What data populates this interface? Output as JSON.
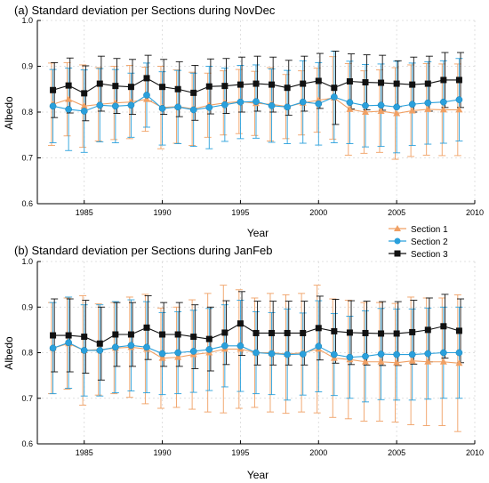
{
  "legend": [
    {
      "name": "Section 1",
      "color": "#f0a064",
      "marker": "triangle"
    },
    {
      "name": "Section 2",
      "color": "#2aa0dc",
      "marker": "circle"
    },
    {
      "name": "Section 3",
      "color": "#111111",
      "marker": "square"
    }
  ],
  "chart_data": [
    {
      "type": "line",
      "title": "(a) Standard deviation per Sections during NovDec",
      "xlabel": "Year",
      "ylabel": "Albedo",
      "xlim": [
        1982,
        2010
      ],
      "ylim": [
        0.6,
        1.0
      ],
      "xticks": [
        1985,
        1990,
        1995,
        2000,
        2005,
        2010
      ],
      "yticks": [
        0.6,
        0.7,
        0.8,
        0.9,
        1.0
      ],
      "grid": true,
      "x": [
        1983,
        1984,
        1985,
        1986,
        1987,
        1988,
        1989,
        1990,
        1991,
        1992,
        1993,
        1994,
        1995,
        1996,
        1997,
        1998,
        1999,
        2000,
        2001,
        2002,
        2003,
        2004,
        2005,
        2006,
        2007,
        2008,
        2009
      ],
      "series": [
        {
          "name": "Section 1",
          "values": [
            0.817,
            0.828,
            0.813,
            0.817,
            0.82,
            0.822,
            0.828,
            0.81,
            0.812,
            0.807,
            0.815,
            0.82,
            0.823,
            0.819,
            0.817,
            0.812,
            0.82,
            0.826,
            0.831,
            0.806,
            0.8,
            0.802,
            0.797,
            0.803,
            0.806,
            0.805,
            0.805
          ],
          "error": [
            0.09,
            0.08,
            0.09,
            0.08,
            0.08,
            0.08,
            0.07,
            0.09,
            0.08,
            0.08,
            0.07,
            0.07,
            0.07,
            0.07,
            0.08,
            0.07,
            0.07,
            0.07,
            0.09,
            0.1,
            0.09,
            0.09,
            0.1,
            0.1,
            0.1,
            0.1,
            0.1
          ]
        },
        {
          "name": "Section 2",
          "values": [
            0.813,
            0.806,
            0.802,
            0.815,
            0.813,
            0.815,
            0.837,
            0.808,
            0.811,
            0.805,
            0.81,
            0.816,
            0.822,
            0.823,
            0.814,
            0.811,
            0.822,
            0.818,
            0.833,
            0.821,
            0.814,
            0.815,
            0.811,
            0.817,
            0.82,
            0.822,
            0.827
          ],
          "error": [
            0.08,
            0.09,
            0.09,
            0.08,
            0.08,
            0.07,
            0.07,
            0.08,
            0.08,
            0.08,
            0.09,
            0.08,
            0.08,
            0.08,
            0.08,
            0.08,
            0.09,
            0.09,
            0.1,
            0.09,
            0.09,
            0.09,
            0.1,
            0.09,
            0.09,
            0.09,
            0.09
          ]
        },
        {
          "name": "Section 3",
          "values": [
            0.848,
            0.858,
            0.841,
            0.862,
            0.857,
            0.855,
            0.874,
            0.855,
            0.85,
            0.842,
            0.856,
            0.857,
            0.86,
            0.862,
            0.86,
            0.853,
            0.862,
            0.868,
            0.853,
            0.867,
            0.865,
            0.864,
            0.862,
            0.86,
            0.862,
            0.87,
            0.87
          ],
          "error": [
            0.06,
            0.06,
            0.06,
            0.06,
            0.06,
            0.06,
            0.05,
            0.06,
            0.06,
            0.06,
            0.06,
            0.06,
            0.06,
            0.06,
            0.06,
            0.06,
            0.06,
            0.06,
            0.08,
            0.06,
            0.06,
            0.06,
            0.05,
            0.06,
            0.06,
            0.06,
            0.06
          ]
        }
      ]
    },
    {
      "type": "line",
      "title": "(b) Standard deviation per Sections during JanFeb",
      "xlabel": "Year",
      "ylabel": "Albedo",
      "xlim": [
        1982,
        2010
      ],
      "ylim": [
        0.6,
        1.0
      ],
      "xticks": [
        1985,
        1990,
        1995,
        2000,
        2005,
        2010
      ],
      "yticks": [
        0.6,
        0.7,
        0.8,
        0.9,
        1.0
      ],
      "grid": true,
      "x": [
        1983,
        1984,
        1985,
        1986,
        1987,
        1988,
        1989,
        1990,
        1991,
        1992,
        1993,
        1994,
        1995,
        1996,
        1997,
        1998,
        1999,
        2000,
        2001,
        2002,
        2003,
        2004,
        2005,
        2006,
        2007,
        2008,
        2009
      ],
      "series": [
        {
          "name": "Section 1",
          "values": [
            0.81,
            0.82,
            0.805,
            0.807,
            0.81,
            0.812,
            0.808,
            0.788,
            0.79,
            0.796,
            0.8,
            0.808,
            0.808,
            0.8,
            0.8,
            0.797,
            0.8,
            0.808,
            0.788,
            0.785,
            0.78,
            0.78,
            0.778,
            0.782,
            0.78,
            0.78,
            0.777
          ],
          "error": [
            0.1,
            0.1,
            0.12,
            0.1,
            0.1,
            0.11,
            0.12,
            0.11,
            0.11,
            0.12,
            0.13,
            0.14,
            0.13,
            0.12,
            0.13,
            0.13,
            0.13,
            0.14,
            0.13,
            0.13,
            0.13,
            0.13,
            0.13,
            0.14,
            0.14,
            0.14,
            0.15
          ]
        },
        {
          "name": "Section 2",
          "values": [
            0.81,
            0.822,
            0.805,
            0.805,
            0.812,
            0.816,
            0.812,
            0.798,
            0.8,
            0.803,
            0.807,
            0.815,
            0.815,
            0.8,
            0.798,
            0.796,
            0.797,
            0.814,
            0.796,
            0.79,
            0.792,
            0.797,
            0.796,
            0.796,
            0.798,
            0.8,
            0.8
          ],
          "error": [
            0.1,
            0.1,
            0.1,
            0.1,
            0.1,
            0.1,
            0.1,
            0.09,
            0.09,
            0.09,
            0.09,
            0.09,
            0.1,
            0.09,
            0.09,
            0.1,
            0.09,
            0.1,
            0.09,
            0.09,
            0.1,
            0.1,
            0.1,
            0.1,
            0.1,
            0.1,
            0.1
          ]
        },
        {
          "name": "Section 3",
          "values": [
            0.838,
            0.838,
            0.835,
            0.82,
            0.84,
            0.84,
            0.855,
            0.84,
            0.84,
            0.835,
            0.83,
            0.844,
            0.864,
            0.843,
            0.843,
            0.843,
            0.843,
            0.854,
            0.847,
            0.844,
            0.843,
            0.842,
            0.842,
            0.845,
            0.85,
            0.858,
            0.848
          ],
          "error": [
            0.08,
            0.08,
            0.08,
            0.08,
            0.07,
            0.07,
            0.07,
            0.07,
            0.07,
            0.07,
            0.07,
            0.07,
            0.07,
            0.07,
            0.07,
            0.07,
            0.07,
            0.07,
            0.07,
            0.07,
            0.07,
            0.07,
            0.07,
            0.07,
            0.07,
            0.07,
            0.07
          ]
        }
      ]
    }
  ]
}
